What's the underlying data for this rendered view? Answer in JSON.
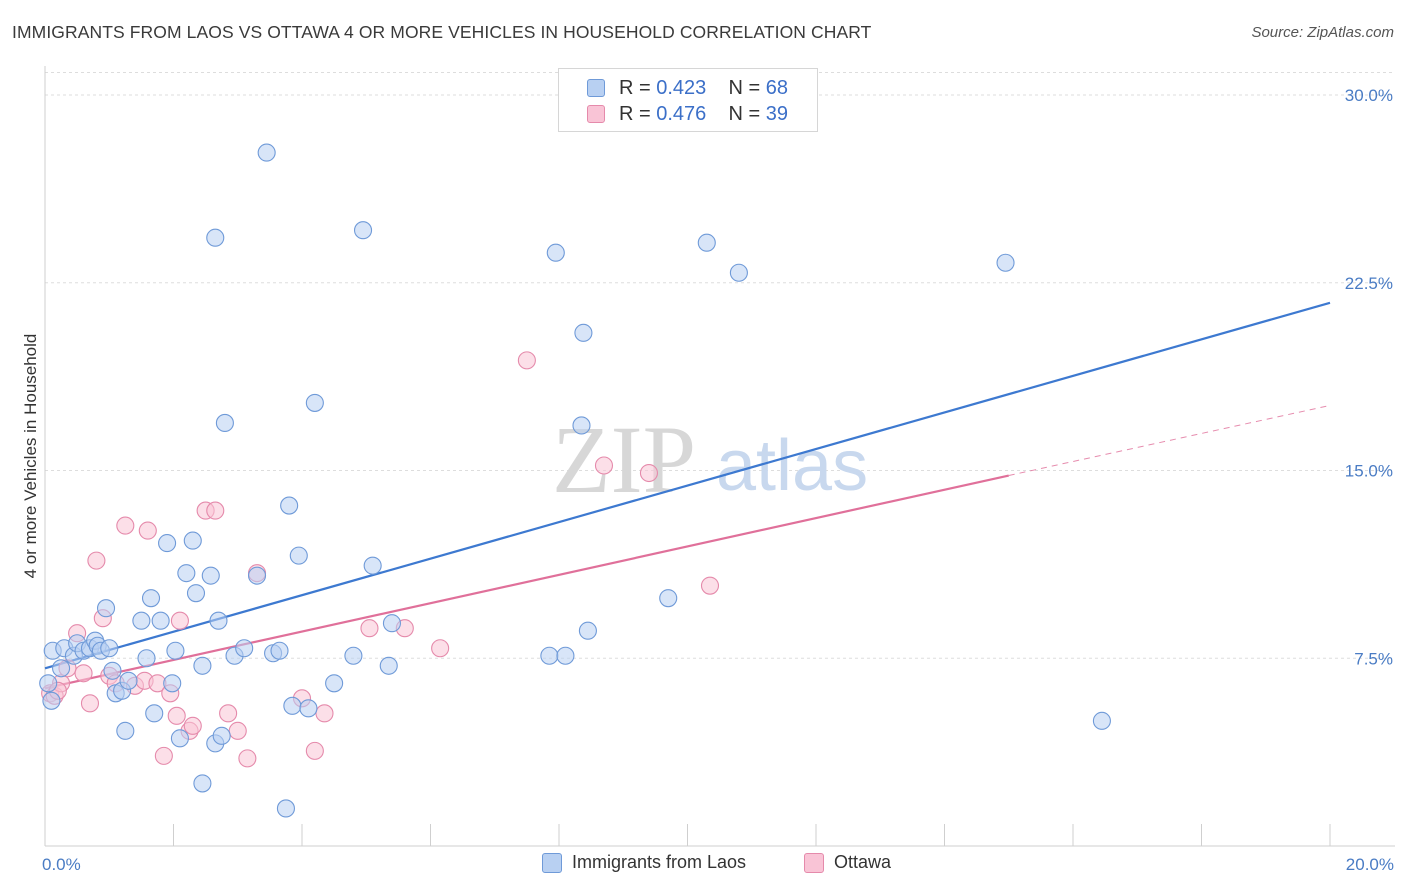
{
  "title": "IMMIGRANTS FROM LAOS VS OTTAWA 4 OR MORE VEHICLES IN HOUSEHOLD CORRELATION CHART",
  "source": "Source: ZipAtlas.com",
  "watermark": {
    "zip": "ZIP",
    "atlas": "atlas"
  },
  "legend_top": [
    {
      "r_label": "R = ",
      "r_value": "0.423",
      "n_label": "N = ",
      "n_value": "68"
    },
    {
      "r_label": "R = ",
      "r_value": "0.476",
      "n_label": "N = ",
      "n_value": "39"
    }
  ],
  "legend_bottom": [
    {
      "label": "Immigrants from Laos"
    },
    {
      "label": "Ottawa"
    }
  ],
  "colors": {
    "laos_fill": "#b8d0f2",
    "laos_stroke": "#6f9ad8",
    "laos_line": "#3d79d0",
    "ottawa_fill": "#f9c4d6",
    "ottawa_stroke": "#e58aab",
    "ottawa_line": "#e0709a",
    "grid": "#dddddd",
    "tick": "#4a7cc4"
  },
  "chart_data": {
    "type": "scatter",
    "title": "IMMIGRANTS FROM LAOS VS OTTAWA 4 OR MORE VEHICLES IN HOUSEHOLD CORRELATION CHART",
    "xlabel": "",
    "ylabel": "4 or more Vehicles in Household",
    "xlim": [
      0,
      20
    ],
    "ylim": [
      0,
      31
    ],
    "x_tick_labels": [
      {
        "value": 0,
        "label": "0.0%"
      },
      {
        "value": 20,
        "label": "20.0%"
      }
    ],
    "y_tick_labels": [
      {
        "value": 7.5,
        "label": "7.5%"
      },
      {
        "value": 15,
        "label": "15.0%"
      },
      {
        "value": 22.5,
        "label": "22.5%"
      },
      {
        "value": 30,
        "label": "30.0%"
      }
    ],
    "grid": true,
    "legend_placement": "top-center",
    "series": [
      {
        "name": "Immigrants from Laos",
        "trend": {
          "x": [
            0,
            20
          ],
          "y": [
            7.1,
            21.7
          ]
        },
        "points": [
          [
            0.12,
            7.8
          ],
          [
            0.25,
            7.1
          ],
          [
            0.3,
            7.9
          ],
          [
            0.45,
            7.6
          ],
          [
            0.5,
            8.1
          ],
          [
            0.6,
            7.8
          ],
          [
            0.7,
            7.9
          ],
          [
            0.78,
            8.2
          ],
          [
            0.82,
            8.0
          ],
          [
            0.87,
            7.8
          ],
          [
            0.95,
            9.5
          ],
          [
            1.0,
            7.9
          ],
          [
            1.05,
            7.0
          ],
          [
            1.1,
            6.1
          ],
          [
            1.2,
            6.2
          ],
          [
            1.3,
            6.6
          ],
          [
            1.25,
            4.6
          ],
          [
            1.5,
            9.0
          ],
          [
            1.58,
            7.5
          ],
          [
            1.65,
            9.9
          ],
          [
            1.7,
            5.3
          ],
          [
            1.8,
            9.0
          ],
          [
            1.9,
            12.1
          ],
          [
            1.98,
            6.5
          ],
          [
            2.03,
            7.8
          ],
          [
            2.1,
            4.3
          ],
          [
            2.2,
            10.9
          ],
          [
            2.3,
            12.2
          ],
          [
            2.35,
            10.1
          ],
          [
            2.45,
            7.2
          ],
          [
            2.58,
            10.8
          ],
          [
            2.7,
            9.0
          ],
          [
            2.45,
            2.5
          ],
          [
            2.65,
            4.1
          ],
          [
            2.75,
            4.4
          ],
          [
            2.8,
            16.9
          ],
          [
            2.65,
            24.3
          ],
          [
            2.95,
            7.6
          ],
          [
            3.1,
            7.9
          ],
          [
            3.3,
            10.8
          ],
          [
            3.45,
            27.7
          ],
          [
            3.55,
            7.7
          ],
          [
            3.65,
            7.8
          ],
          [
            3.75,
            1.5
          ],
          [
            3.8,
            13.6
          ],
          [
            3.85,
            5.6
          ],
          [
            3.95,
            11.6
          ],
          [
            4.1,
            5.5
          ],
          [
            4.2,
            17.7
          ],
          [
            4.5,
            6.5
          ],
          [
            4.8,
            7.6
          ],
          [
            4.95,
            24.6
          ],
          [
            5.1,
            11.2
          ],
          [
            5.35,
            7.2
          ],
          [
            5.4,
            8.9
          ],
          [
            7.85,
            7.6
          ],
          [
            7.95,
            23.7
          ],
          [
            8.1,
            7.6
          ],
          [
            8.35,
            16.8
          ],
          [
            8.38,
            20.5
          ],
          [
            8.45,
            8.6
          ],
          [
            9.7,
            9.9
          ],
          [
            10.3,
            24.1
          ],
          [
            10.8,
            22.9
          ],
          [
            14.95,
            23.3
          ],
          [
            16.45,
            5.0
          ],
          [
            0.05,
            6.5
          ],
          [
            0.1,
            5.8
          ]
        ]
      },
      {
        "name": "Ottawa",
        "trend": {
          "x": [
            0,
            15
          ],
          "y": [
            6.3,
            14.8
          ]
        },
        "trend_extension": {
          "x": [
            15,
            20
          ],
          "y": [
            14.8,
            17.6
          ]
        },
        "points": [
          [
            0.08,
            6.1
          ],
          [
            0.15,
            6.0
          ],
          [
            0.25,
            6.5
          ],
          [
            0.35,
            7.1
          ],
          [
            0.5,
            8.5
          ],
          [
            0.6,
            6.9
          ],
          [
            0.7,
            5.7
          ],
          [
            0.8,
            11.4
          ],
          [
            0.9,
            9.1
          ],
          [
            1.0,
            6.8
          ],
          [
            1.1,
            6.5
          ],
          [
            1.25,
            12.8
          ],
          [
            1.4,
            6.4
          ],
          [
            1.55,
            6.6
          ],
          [
            1.6,
            12.6
          ],
          [
            1.75,
            6.5
          ],
          [
            1.85,
            3.6
          ],
          [
            1.95,
            6.1
          ],
          [
            2.05,
            5.2
          ],
          [
            2.1,
            9.0
          ],
          [
            2.25,
            4.6
          ],
          [
            2.3,
            4.8
          ],
          [
            2.5,
            13.4
          ],
          [
            2.65,
            13.4
          ],
          [
            2.85,
            5.3
          ],
          [
            3.0,
            4.6
          ],
          [
            3.15,
            3.5
          ],
          [
            3.3,
            10.9
          ],
          [
            4.0,
            5.9
          ],
          [
            4.2,
            3.8
          ],
          [
            4.35,
            5.3
          ],
          [
            5.05,
            8.7
          ],
          [
            5.6,
            8.7
          ],
          [
            6.15,
            7.9
          ],
          [
            7.5,
            19.4
          ],
          [
            8.7,
            15.2
          ],
          [
            9.4,
            14.9
          ],
          [
            10.35,
            10.4
          ],
          [
            0.2,
            6.2
          ]
        ]
      }
    ]
  }
}
